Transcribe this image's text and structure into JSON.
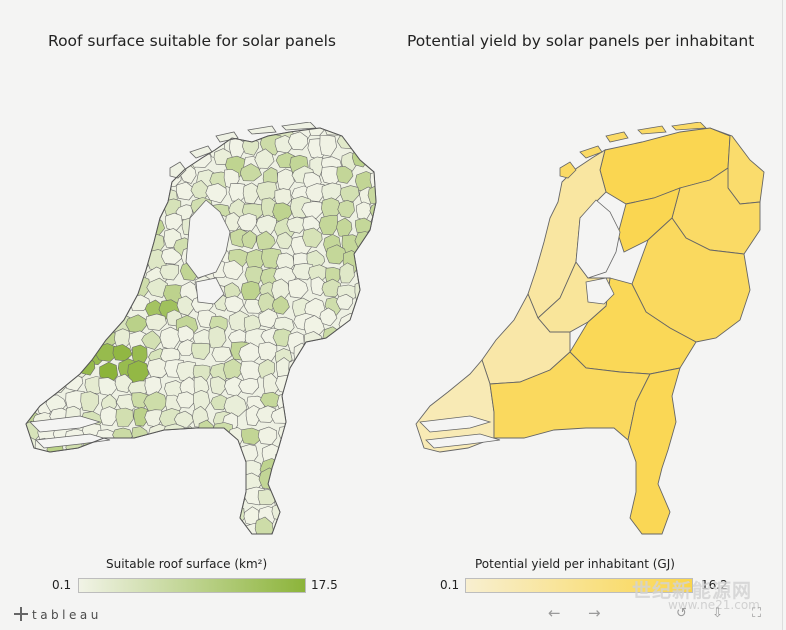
{
  "left_panel": {
    "title": "Roof surface suitable for solar panels",
    "legend_title": "Suitable roof surface (km²)",
    "legend_min": "0.1",
    "legend_max": "17.5",
    "color_low": "#f1f3e6",
    "color_high": "#8cb43a"
  },
  "right_panel": {
    "title": "Potential yield by solar panels per inhabitant",
    "legend_title": "Potential yield per inhabitant (GJ)",
    "legend_min": "0.1",
    "legend_max": "16.2",
    "color_low": "#f8efd0",
    "color_high": "#fad54a"
  },
  "footer": {
    "brand": "tableau",
    "undo_icon": "←",
    "redo_icon": "→",
    "revert_icon": "↺",
    "download_icon": "⇩",
    "fullscreen_icon": "⛶"
  },
  "watermark": {
    "text": "世纪新能源网",
    "sub": "www.ne21.com"
  },
  "icons": {
    "undo": "arrow-left-icon",
    "redo": "arrow-right-icon",
    "revert": "revert-icon",
    "download": "download-icon",
    "fullscreen": "fullscreen-icon"
  }
}
